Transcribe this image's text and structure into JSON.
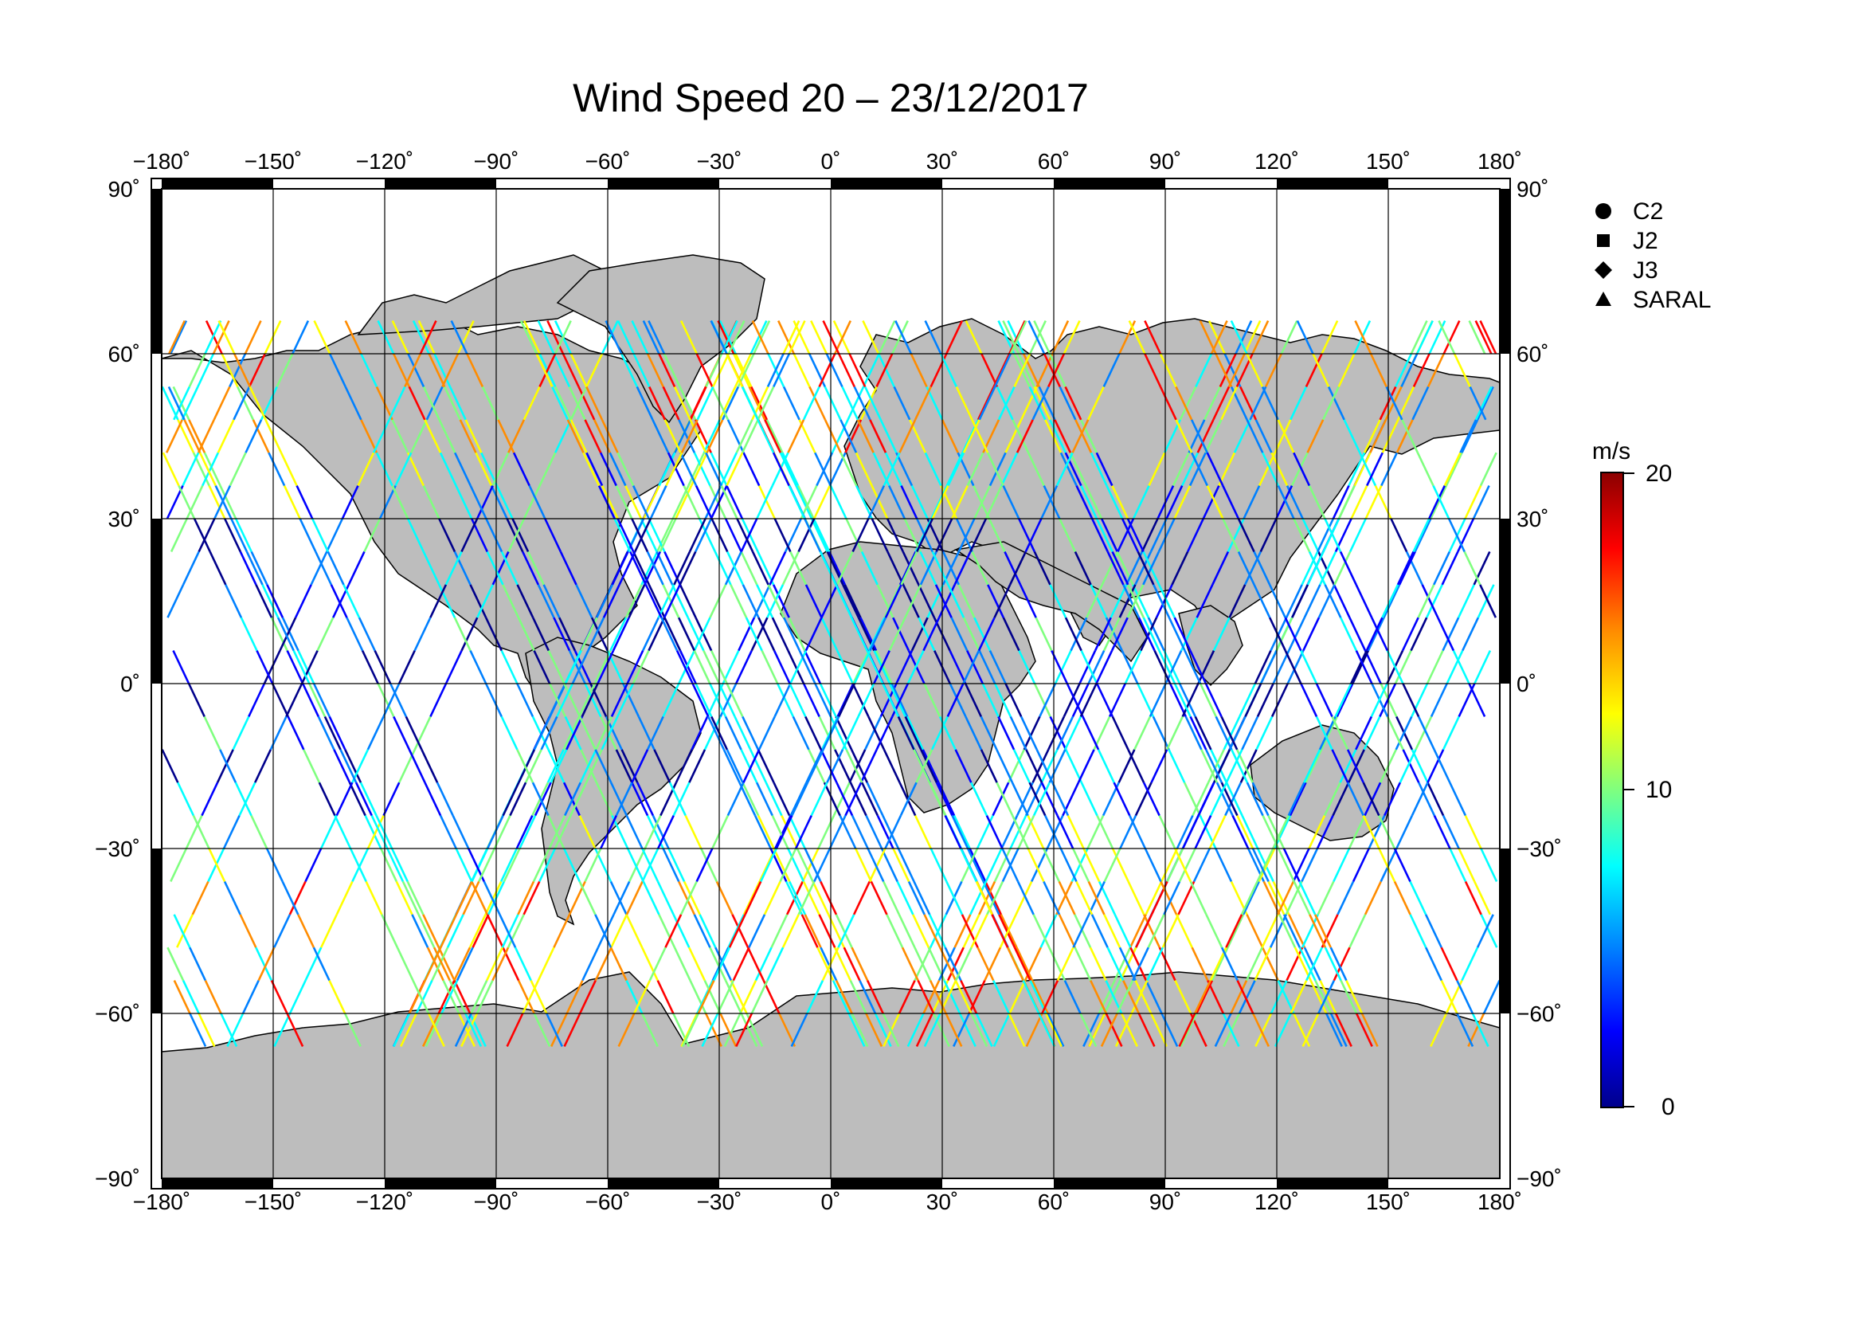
{
  "title": "Wind Speed 20 – 23/12/2017",
  "map": {
    "projection": "equirectangular",
    "lon_range": [
      -180,
      180
    ],
    "lat_range": [
      -90,
      90
    ],
    "lon_ticks": [
      "−180˚",
      "−150˚",
      "−120˚",
      "−90˚",
      "−60˚",
      "−30˚",
      "0˚",
      "30˚",
      "60˚",
      "90˚",
      "120˚",
      "150˚",
      "180˚"
    ],
    "lat_ticks": [
      "90˚",
      "60˚",
      "30˚",
      "0˚",
      "−30˚",
      "−60˚",
      "−90˚"
    ],
    "grid": true,
    "land_color": "#bdbdbd",
    "ocean_color": "#ffffff"
  },
  "legend": {
    "items": [
      {
        "symbol": "circle",
        "label": "C2"
      },
      {
        "symbol": "square",
        "label": "J2"
      },
      {
        "symbol": "diamond",
        "label": "J3"
      },
      {
        "symbol": "triangle",
        "label": "SARAL"
      }
    ]
  },
  "colorbar": {
    "unit": "m/s",
    "min": 0,
    "max": 20,
    "ticks": [
      "20",
      "10",
      "0"
    ],
    "colors": [
      "#8b0000",
      "#ff0000",
      "#ff8c00",
      "#ffff00",
      "#7fff7f",
      "#00ffff",
      "#0080ff",
      "#0000ff",
      "#00008b"
    ]
  }
}
